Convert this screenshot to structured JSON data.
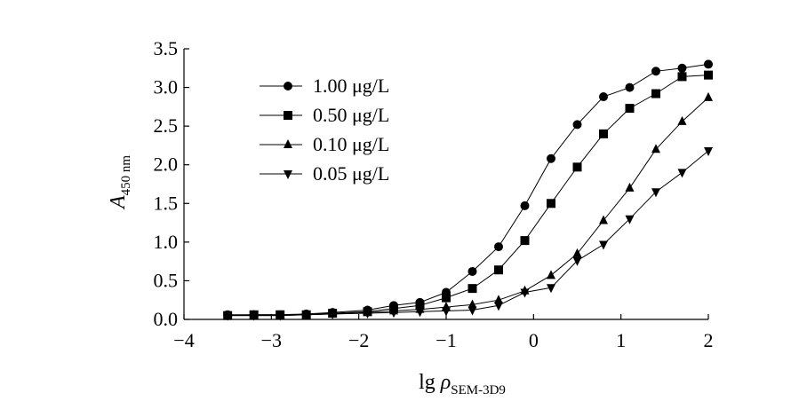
{
  "chart_data": {
    "type": "line",
    "title": "",
    "xlabel": {
      "prefix": "lg ",
      "symbol": "ρ",
      "subscript": "SEM-3D9"
    },
    "ylabel": {
      "symbol": "A",
      "subscript": "450 nm"
    },
    "xlim": [
      -4,
      2
    ],
    "ylim": [
      0.0,
      3.5
    ],
    "xticks": [
      {
        "value": -4,
        "label": "−4"
      },
      {
        "value": -3,
        "label": "−3"
      },
      {
        "value": -2,
        "label": "−2"
      },
      {
        "value": -1,
        "label": "−1"
      },
      {
        "value": 0,
        "label": "0"
      },
      {
        "value": 1,
        "label": "1"
      },
      {
        "value": 2,
        "label": "2"
      }
    ],
    "yticks": [
      {
        "value": 0.0,
        "label": "0.0"
      },
      {
        "value": 0.5,
        "label": "0.5"
      },
      {
        "value": 1.0,
        "label": "1.0"
      },
      {
        "value": 1.5,
        "label": "1.5"
      },
      {
        "value": 2.0,
        "label": "2.0"
      },
      {
        "value": 2.5,
        "label": "2.5"
      },
      {
        "value": 3.0,
        "label": "3.0"
      },
      {
        "value": 3.5,
        "label": "3.5"
      }
    ],
    "grid": false,
    "legend_position": "top-left",
    "x": [
      -3.5,
      -3.2,
      -2.9,
      -2.6,
      -2.3,
      -1.9,
      -1.6,
      -1.3,
      -1.0,
      -0.7,
      -0.4,
      -0.1,
      0.2,
      0.5,
      0.8,
      1.1,
      1.4,
      1.7,
      2.0
    ],
    "series": [
      {
        "name": "1.00 μg/L",
        "marker": "circle",
        "values": [
          0.06,
          0.06,
          0.06,
          0.07,
          0.09,
          0.12,
          0.18,
          0.22,
          0.35,
          0.62,
          0.94,
          1.47,
          2.08,
          2.52,
          2.88,
          3.0,
          3.21,
          3.25,
          3.3
        ]
      },
      {
        "name": "0.50 μg/L",
        "marker": "square",
        "values": [
          0.05,
          0.06,
          0.06,
          0.06,
          0.08,
          0.1,
          0.14,
          0.18,
          0.28,
          0.4,
          0.64,
          1.02,
          1.5,
          1.97,
          2.4,
          2.73,
          2.92,
          3.14,
          3.16
        ]
      },
      {
        "name": "0.10 μg/L",
        "marker": "triangle-up",
        "values": [
          0.05,
          0.05,
          0.05,
          0.06,
          0.07,
          0.09,
          0.11,
          0.13,
          0.16,
          0.19,
          0.25,
          0.37,
          0.57,
          0.85,
          1.28,
          1.7,
          2.2,
          2.56,
          2.87
        ]
      },
      {
        "name": "0.05 μg/L",
        "marker": "triangle-down",
        "values": [
          0.05,
          0.05,
          0.05,
          0.06,
          0.07,
          0.08,
          0.09,
          0.1,
          0.11,
          0.12,
          0.18,
          0.35,
          0.41,
          0.76,
          0.97,
          1.3,
          1.65,
          1.9,
          2.18
        ]
      }
    ]
  }
}
